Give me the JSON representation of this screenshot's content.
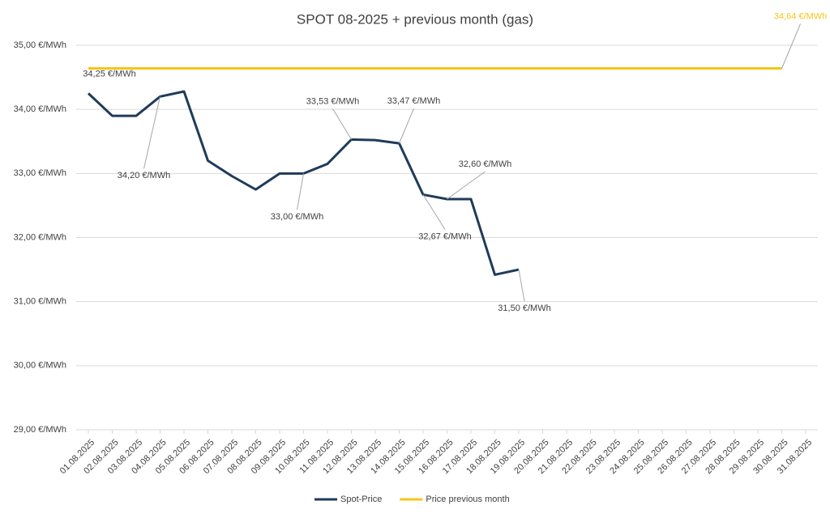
{
  "chart_data": {
    "type": "line",
    "title": "SPOT 08-2025 + previous month (gas)",
    "categories": [
      "01.08.2025",
      "02.08.2025",
      "03.08.2025",
      "04.08.2025",
      "05.08.2025",
      "06.08.2025",
      "07.08.2025",
      "08.08.2025",
      "09.08.2025",
      "10.08.2025",
      "11.08.2025",
      "12.08.2025",
      "13.08.2025",
      "14.08.2025",
      "15.08.2025",
      "16.08.2025",
      "17.08.2025",
      "18.08.2025",
      "19.08.2025",
      "20.08.2025",
      "21.08.2025",
      "22.08.2025",
      "23.08.2025",
      "24.08.2025",
      "25.08.2025",
      "26.08.2025",
      "27.08.2025",
      "28.08.2025",
      "29.08.2025",
      "30.08.2025",
      "31.08.2025"
    ],
    "series": [
      {
        "name": "Spot-Price",
        "color": "#1f3b5a",
        "values": [
          34.25,
          33.9,
          33.9,
          34.2,
          34.28,
          33.2,
          32.96,
          32.75,
          33.0,
          33.0,
          33.15,
          33.53,
          33.52,
          33.47,
          32.67,
          32.6,
          32.6,
          31.42,
          31.5,
          null,
          null,
          null,
          null,
          null,
          null,
          null,
          null,
          null,
          null,
          null,
          null
        ],
        "value_labels": [
          "34,25 €/MWh",
          null,
          null,
          "34,20 €/MWh",
          null,
          null,
          null,
          null,
          null,
          "33,00 €/MWh",
          null,
          "33,53 €/MWh",
          null,
          "33,47 €/MWh",
          "32,67 €/MWh",
          "32,60 €/MWh",
          null,
          null,
          "31,50 €/MWh",
          null,
          null,
          null,
          null,
          null,
          null,
          null,
          null,
          null,
          null,
          null,
          null
        ]
      },
      {
        "name": "Price previous month",
        "color": "#f5c518",
        "values": [
          34.64,
          34.64,
          34.64,
          34.64,
          34.64,
          34.64,
          34.64,
          34.64,
          34.64,
          34.64,
          34.64,
          34.64,
          34.64,
          34.64,
          34.64,
          34.64,
          34.64,
          34.64,
          34.64,
          34.64,
          34.64,
          34.64,
          34.64,
          34.64,
          34.64,
          34.64,
          34.64,
          34.64,
          34.64,
          34.64,
          null
        ],
        "value_labels": [
          null,
          null,
          null,
          null,
          null,
          null,
          null,
          null,
          null,
          null,
          null,
          null,
          null,
          null,
          null,
          null,
          null,
          null,
          null,
          null,
          null,
          null,
          null,
          null,
          null,
          null,
          null,
          null,
          null,
          "34,64 €/MWh",
          null
        ]
      }
    ],
    "ylim": [
      29,
      35
    ],
    "yticks": [
      {
        "value": 29,
        "label": "29,00 €/MWh"
      },
      {
        "value": 30,
        "label": "30,00 €/MWh"
      },
      {
        "value": 31,
        "label": "31,00 €/MWh"
      },
      {
        "value": 32,
        "label": "32,00 €/MWh"
      },
      {
        "value": 33,
        "label": "33,00 €/MWh"
      },
      {
        "value": 34,
        "label": "34,00 €/MWh"
      },
      {
        "value": 35,
        "label": "35,00 €/MWh"
      }
    ],
    "grid": true,
    "legend": "bottom"
  }
}
